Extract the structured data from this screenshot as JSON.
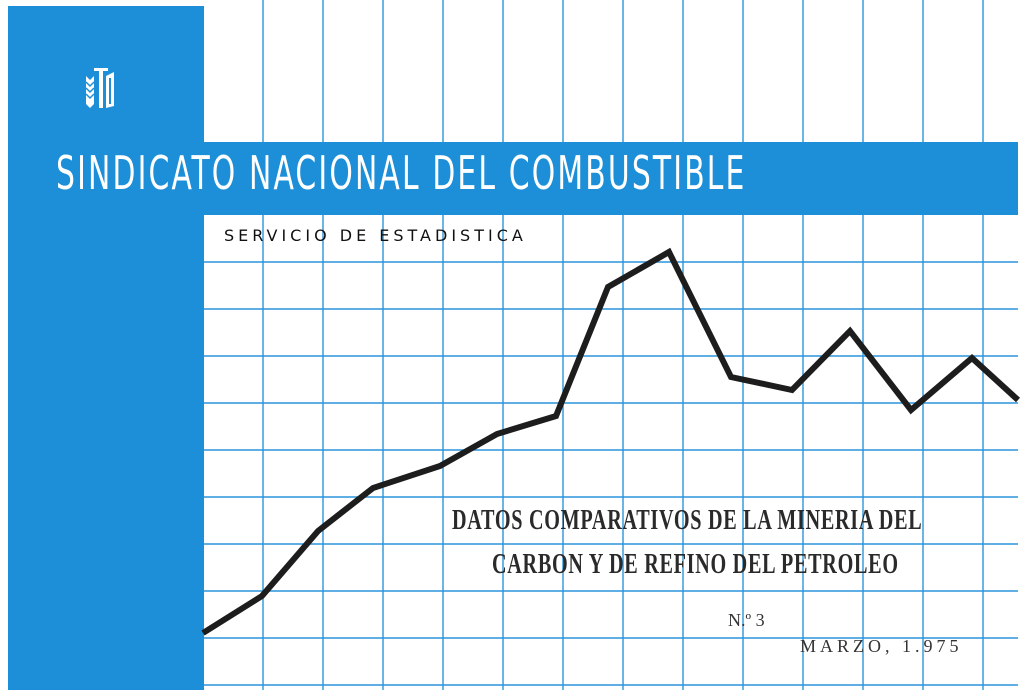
{
  "header": {
    "organization": "SINDICATO NACIONAL DEL COMBUSTIBLE",
    "service": "SERVICIO DE ESTADISTICA",
    "logo": "sindicato-emblem",
    "brand_color": "#1c8fd8"
  },
  "cover": {
    "title_line1": "DATOS COMPARATIVOS DE LA MINERIA DEL",
    "title_line2": "CARBON Y DE REFINO DEL PETROLEO",
    "number": "N.º 3",
    "date": "MARZO, 1.975"
  }
}
